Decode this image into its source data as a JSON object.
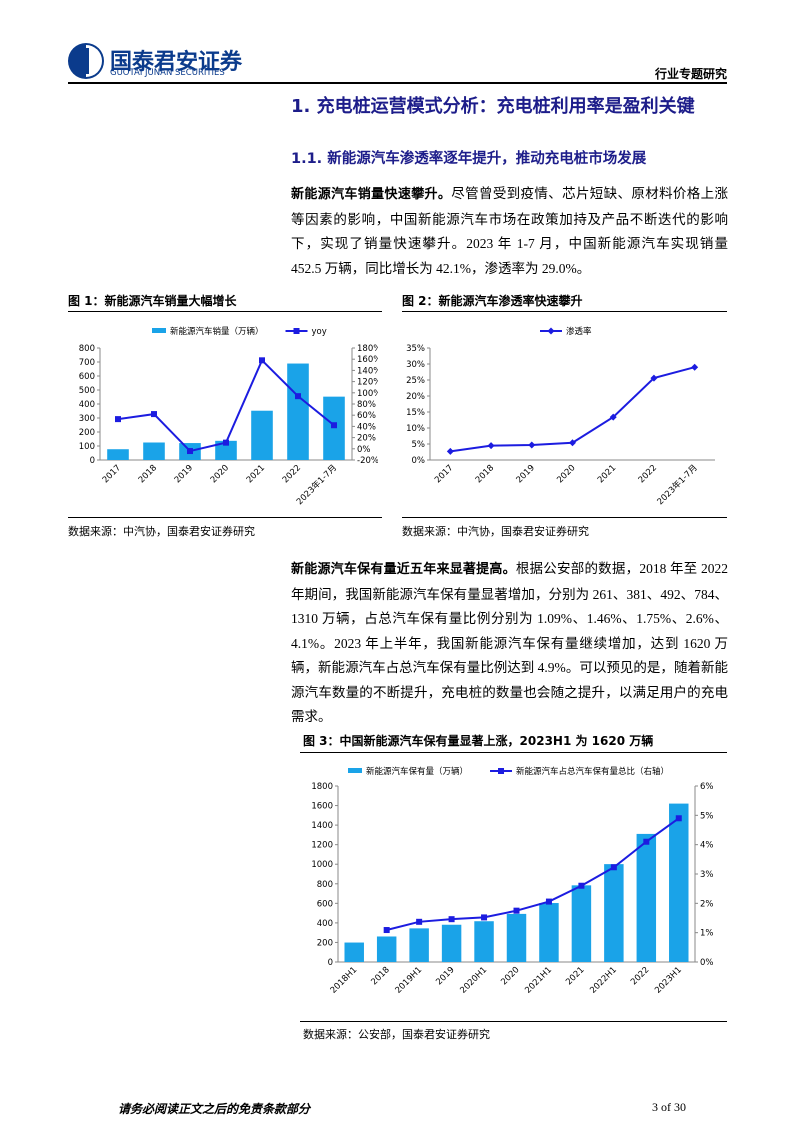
{
  "header": {
    "company": "国泰君安证券",
    "company_en": "GUOTAI JUNAN SECURITIES",
    "report_type": "行业专题研究"
  },
  "headings": [
    "1.  充电桩运营模式分析：充电桩利用率是盈利关键",
    "1.1. 新能源汽车渗透率逐年提升，推动充电桩市场发展"
  ],
  "paragraphs": [
    {
      "lead": "新能源汽车销量快速攀升。",
      "text": "尽管曾受到疫情、芯片短缺、原材料价格上涨等因素的影响，中国新能源汽车市场在政策加持及产品不断迭代的影响下，实现了销量快速攀升。2023 年 1-7 月，中国新能源汽车实现销量 452.5 万辆，同比增长为 42.1%，渗透率为 29.0%。"
    },
    {
      "lead": "新能源汽车保有量近五年来显著提高。",
      "text": "根据公安部的数据，2018 年至 2022 年期间，我国新能源汽车保有量显著增加，分别为 261、381、492、784、1310 万辆，占总汽车保有量比例分别为 1.09%、1.46%、1.75%、2.6%、4.1%。2023 年上半年，我国新能源汽车保有量继续增加，达到 1620 万辆，新能源汽车占总汽车保有量比例达到 4.9%。可以预见的是，随着新能源汽车数量的不断提升，充电桩的数量也会随之提升，以满足用户的充电需求。"
    }
  ],
  "chart_data": [
    {
      "type": "combo",
      "title": "图 1：新能源汽车销量大幅增长",
      "source": "数据来源：中汽协，国泰君安证券研究",
      "categories": [
        "2017",
        "2018",
        "2019",
        "2020",
        "2021",
        "2022",
        "2023年1-7月"
      ],
      "series": [
        {
          "name": "新能源汽车销量（万辆）",
          "type": "bar",
          "color": "#1aa3e8",
          "values": [
            77,
            125,
            121,
            137,
            352,
            689,
            452.5
          ]
        },
        {
          "name": "yoy",
          "type": "line",
          "marker": "square",
          "axis": "y2",
          "color": "#1c1ce0",
          "values": [
            53,
            62,
            -4,
            11,
            158,
            94,
            42.1
          ]
        }
      ],
      "ylim": [
        0,
        800
      ],
      "yticks": [
        0,
        100,
        200,
        300,
        400,
        500,
        600,
        700,
        800
      ],
      "y2lim": [
        -20,
        180
      ],
      "y2ticks": [
        {
          "value": -20,
          "label": "-20%"
        },
        {
          "value": 0,
          "label": "0%"
        },
        {
          "value": 20,
          "label": "20%"
        },
        {
          "value": 40,
          "label": "40%"
        },
        {
          "value": 60,
          "label": "60%"
        },
        {
          "value": 80,
          "label": "80%"
        },
        {
          "value": 100,
          "label": "100%"
        },
        {
          "value": 120,
          "label": "120%"
        },
        {
          "value": 140,
          "label": "140%"
        },
        {
          "value": 160,
          "label": "160%"
        },
        {
          "value": 180,
          "label": "180%"
        }
      ]
    },
    {
      "type": "line",
      "title": "图 2：新能源汽车渗透率快速攀升",
      "source": "数据来源：中汽协，国泰君安证券研究",
      "categories": [
        "2017",
        "2018",
        "2019",
        "2020",
        "2021",
        "2022",
        "2023年1-7月"
      ],
      "series": [
        {
          "name": "渗透率",
          "marker": "diamond",
          "color": "#1c1ce0",
          "values": [
            2.7,
            4.5,
            4.7,
            5.4,
            13.4,
            25.6,
            29.0
          ]
        }
      ],
      "ylim": [
        0,
        35
      ],
      "yticks": [
        {
          "value": 0,
          "label": "0%"
        },
        {
          "value": 5,
          "label": "5%"
        },
        {
          "value": 10,
          "label": "10%"
        },
        {
          "value": 15,
          "label": "15%"
        },
        {
          "value": 20,
          "label": "20%"
        },
        {
          "value": 25,
          "label": "25%"
        },
        {
          "value": 30,
          "label": "30%"
        },
        {
          "value": 35,
          "label": "35%"
        }
      ]
    },
    {
      "type": "combo",
      "title": "图 3：中国新能源汽车保有量显著上涨，2023H1 为 1620 万辆",
      "source": "数据来源：公安部，国泰君安证券研究",
      "categories": [
        "2018H1",
        "2018",
        "2019H1",
        "2019",
        "2020H1",
        "2020",
        "2021H1",
        "2021",
        "2022H1",
        "2022",
        "2023H1"
      ],
      "series": [
        {
          "name": "新能源汽车保有量（万辆）",
          "type": "bar",
          "color": "#1aa3e8",
          "values": [
            199,
            261,
            344,
            381,
            417,
            492,
            603,
            784,
            1001,
            1310,
            1620
          ]
        },
        {
          "name": "新能源汽车占总汽车保有量总比（右轴）",
          "type": "line",
          "marker": "square",
          "axis": "y2",
          "color": "#1c1ce0",
          "values": [
            null,
            1.09,
            1.37,
            1.46,
            1.52,
            1.75,
            2.06,
            2.6,
            3.23,
            4.1,
            4.9
          ]
        }
      ],
      "ylim": [
        0,
        1800
      ],
      "yticks": [
        0,
        200,
        400,
        600,
        800,
        1000,
        1200,
        1400,
        1600,
        1800
      ],
      "y2lim": [
        0,
        6
      ],
      "y2ticks": [
        {
          "value": 0,
          "label": "0%"
        },
        {
          "value": 1,
          "label": "1%"
        },
        {
          "value": 2,
          "label": "2%"
        },
        {
          "value": 3,
          "label": "3%"
        },
        {
          "value": 4,
          "label": "4%"
        },
        {
          "value": 5,
          "label": "5%"
        },
        {
          "value": 6,
          "label": "6%"
        }
      ]
    }
  ],
  "footer": {
    "disclaimer": "请务必阅读正文之后的免责条款部分",
    "page": "3 of 30"
  }
}
